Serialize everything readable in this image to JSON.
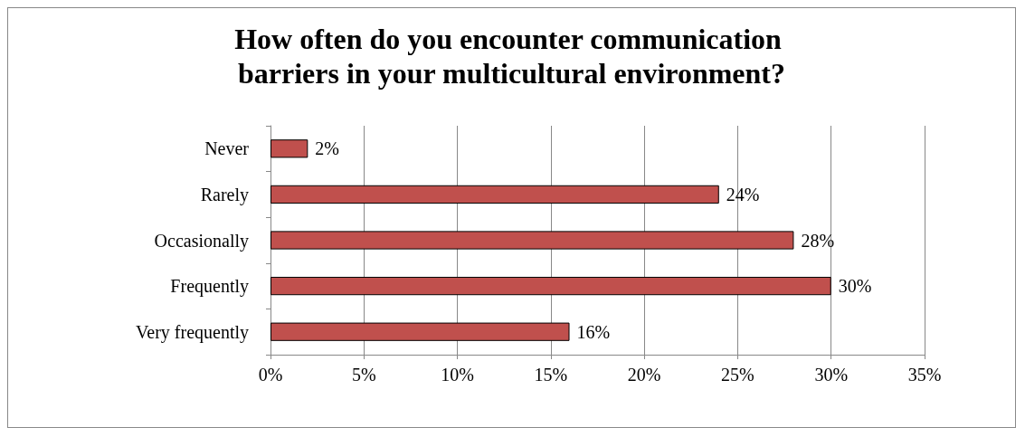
{
  "chart_data": {
    "type": "bar",
    "orientation": "horizontal",
    "title": "How often do you encounter communication barriers in your multicultural environment?",
    "categories": [
      "Never",
      "Rarely",
      "Occasionally",
      "Frequently",
      "Very frequently"
    ],
    "values": [
      2,
      24,
      28,
      30,
      16
    ],
    "value_labels": [
      "2%",
      "24%",
      "28%",
      "30%",
      "16%"
    ],
    "color": "#c0504d",
    "xlim": [
      0,
      35
    ],
    "xticks": [
      {
        "value": 0,
        "label": "0%"
      },
      {
        "value": 5,
        "label": "5%"
      },
      {
        "value": 10,
        "label": "10%"
      },
      {
        "value": 15,
        "label": "15%"
      },
      {
        "value": 20,
        "label": "20%"
      },
      {
        "value": 25,
        "label": "25%"
      },
      {
        "value": 30,
        "label": "30%"
      },
      {
        "value": 35,
        "label": "35%"
      }
    ],
    "grid": "x"
  }
}
